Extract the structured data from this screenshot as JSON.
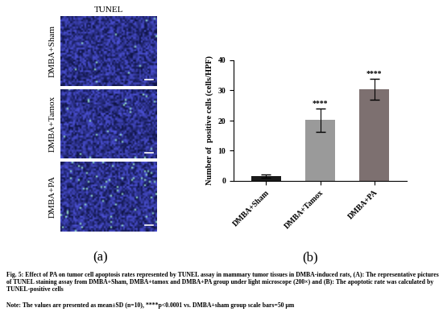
{
  "chart_data": {
    "type": "bar",
    "categories": [
      "DMBA+Sham",
      "DMBA+Tamox",
      "DMBA+PA"
    ],
    "values": [
      1.5,
      20.2,
      30.3
    ],
    "errors": [
      0.5,
      3.8,
      3.5
    ],
    "value_annotations": [
      null,
      "****",
      "****"
    ],
    "colors": [
      "#1a1a1a",
      "#9a9a9a",
      "#7d7070"
    ],
    "y_label": "Number of  positive cells (cells/HPF)",
    "ylim": [
      0,
      40
    ],
    "yticks": [
      0,
      10,
      20,
      30,
      40
    ],
    "grid": false
  },
  "image_panel": {
    "title": "TUNEL",
    "rows": [
      "DMBA+Sham",
      "DMBA+Tamox",
      "DMBA+PA"
    ]
  },
  "panel_labels": [
    "(a)",
    "(b)"
  ],
  "caption": "Fig. 5: Effect of PA on tumor cell apoptosis rates represented by TUNEL assay in mammary tumor tissues in DMBA-induced rats, (A): The representative pictures of TUNEL staining assay from DMBA+Sham, DMBA+tamox and DMBA+PA group under light microscope (200×) and (B): The apoptotic rate was calculated by TUNEL-positive cells",
  "footnote": "Note: The values are presented as mean±SD (n=10), ****p<0.0001 vs. DMBA+sham group scale bars=50 μm"
}
